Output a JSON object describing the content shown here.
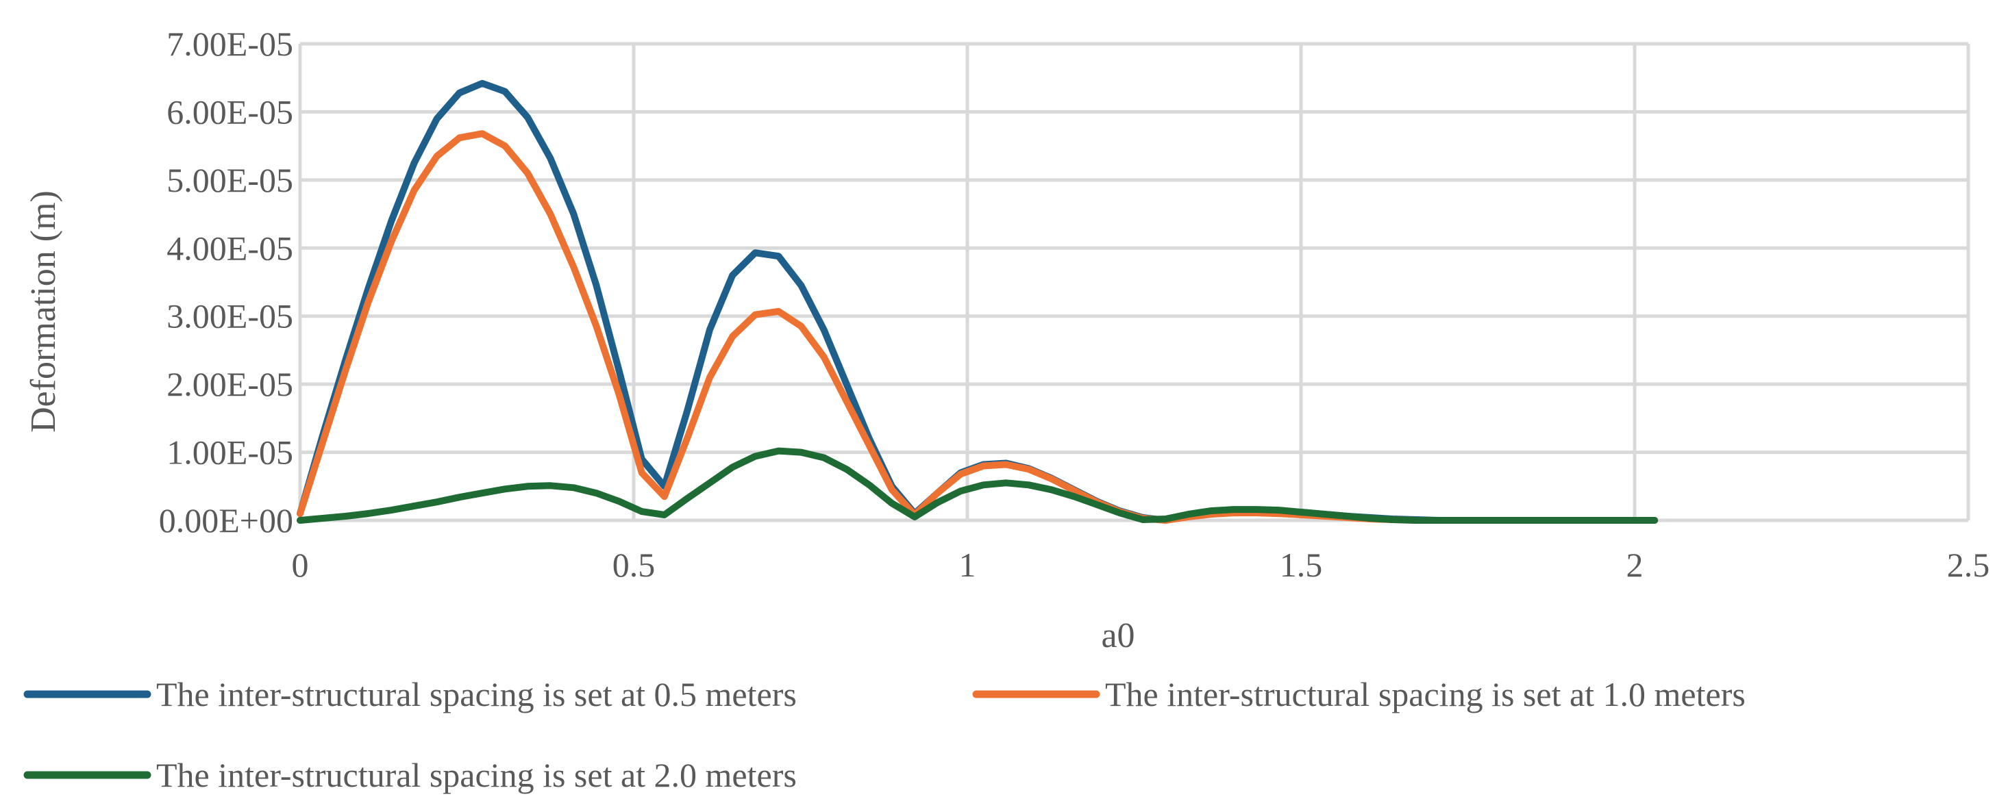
{
  "chart_data": {
    "type": "line",
    "title": "",
    "xlabel": "a0",
    "ylabel": "Deformation (m)",
    "xlim": [
      0,
      2.5
    ],
    "ylim": [
      0,
      7e-05
    ],
    "xticks": [
      "0",
      "0.5",
      "1",
      "1.5",
      "2",
      "2.5"
    ],
    "yticks": [
      "0.00E+00",
      "1.00E-05",
      "2.00E-05",
      "3.00E-05",
      "4.00E-05",
      "5.00E-05",
      "6.00E-05",
      "7.00E-05"
    ],
    "grid": true,
    "legend": "bottom",
    "series": [
      {
        "name": "The inter-structural spacing is set at 0.5 meters",
        "color": "#1f5f8b",
        "x": [
          0,
          0.034,
          0.068,
          0.102,
          0.137,
          0.171,
          0.205,
          0.239,
          0.273,
          0.307,
          0.341,
          0.375,
          0.41,
          0.444,
          0.478,
          0.512,
          0.546,
          0.58,
          0.614,
          0.648,
          0.682,
          0.717,
          0.751,
          0.785,
          0.819,
          0.853,
          0.887,
          0.921,
          0.955,
          0.99,
          1.024,
          1.058,
          1.092,
          1.126,
          1.16,
          1.194,
          1.228,
          1.263,
          1.297,
          1.331,
          1.365,
          1.399,
          1.433,
          1.467,
          1.501,
          1.536,
          1.57,
          1.604,
          1.638,
          1.672,
          1.706,
          1.74,
          1.775,
          1.809,
          1.843,
          1.877,
          1.911,
          1.945,
          1.979,
          2.013,
          2.03
        ],
        "values": [
          1e-06,
          1.25e-05,
          2.35e-05,
          3.4e-05,
          4.4e-05,
          5.25e-05,
          5.9e-05,
          6.28e-05,
          6.42e-05,
          6.3e-05,
          5.92e-05,
          5.32e-05,
          4.5e-05,
          3.45e-05,
          2.2e-05,
          9e-06,
          5e-06,
          1.6e-05,
          2.8e-05,
          3.6e-05,
          3.93e-05,
          3.88e-05,
          3.45e-05,
          2.8e-05,
          2e-05,
          1.2e-05,
          5e-06,
          1e-06,
          4e-06,
          7e-06,
          8.2e-06,
          8.4e-06,
          7.6e-06,
          6.2e-06,
          4.5e-06,
          2.8e-06,
          1.4e-06,
          4e-07,
          0,
          6e-07,
          1.1e-06,
          1.4e-06,
          1.5e-06,
          1.4e-06,
          1.2e-06,
          9e-07,
          6e-07,
          4e-07,
          2e-07,
          1e-07,
          0,
          0,
          0,
          0,
          0,
          0,
          0,
          0,
          0,
          0,
          0
        ]
      },
      {
        "name": "The inter-structural spacing is set at 1.0 meters",
        "color": "#ed7232",
        "x": [
          0,
          0.034,
          0.068,
          0.102,
          0.137,
          0.171,
          0.205,
          0.239,
          0.273,
          0.307,
          0.341,
          0.375,
          0.41,
          0.444,
          0.478,
          0.512,
          0.546,
          0.58,
          0.614,
          0.648,
          0.682,
          0.717,
          0.751,
          0.785,
          0.819,
          0.853,
          0.887,
          0.921,
          0.955,
          0.99,
          1.024,
          1.058,
          1.092,
          1.126,
          1.16,
          1.194,
          1.228,
          1.263,
          1.297,
          1.331,
          1.365,
          1.399,
          1.433,
          1.467,
          1.501,
          1.536,
          1.57,
          1.604,
          1.638,
          1.672,
          1.706,
          1.74,
          1.775,
          1.809,
          1.843,
          1.877,
          1.911,
          1.945,
          1.979,
          2.013,
          2.03
        ],
        "values": [
          1e-06,
          1.15e-05,
          2.2e-05,
          3.2e-05,
          4.1e-05,
          4.85e-05,
          5.35e-05,
          5.62e-05,
          5.68e-05,
          5.5e-05,
          5.1e-05,
          4.5e-05,
          3.72e-05,
          2.85e-05,
          1.85e-05,
          7e-06,
          3.5e-06,
          1.2e-05,
          2.1e-05,
          2.7e-05,
          3.02e-05,
          3.07e-05,
          2.85e-05,
          2.4e-05,
          1.75e-05,
          1.1e-05,
          4.5e-06,
          8e-07,
          4e-06,
          6.8e-06,
          8e-06,
          8.2e-06,
          7.5e-06,
          6.1e-06,
          4.4e-06,
          2.7e-06,
          1.3e-06,
          3e-07,
          0,
          5e-07,
          9e-07,
          1.1e-06,
          1.1e-06,
          1e-06,
          8e-07,
          6e-07,
          4e-07,
          2e-07,
          1e-07,
          0,
          0,
          0,
          0,
          0,
          0,
          0,
          0,
          0,
          0,
          0,
          0
        ]
      },
      {
        "name": "The inter-structural spacing is set at 2.0 meters",
        "color": "#1e6b34",
        "x": [
          0,
          0.034,
          0.068,
          0.102,
          0.137,
          0.171,
          0.205,
          0.239,
          0.273,
          0.307,
          0.341,
          0.375,
          0.41,
          0.444,
          0.478,
          0.512,
          0.546,
          0.58,
          0.614,
          0.648,
          0.682,
          0.717,
          0.751,
          0.785,
          0.819,
          0.853,
          0.887,
          0.921,
          0.955,
          0.99,
          1.024,
          1.058,
          1.092,
          1.126,
          1.16,
          1.194,
          1.228,
          1.263,
          1.297,
          1.331,
          1.365,
          1.399,
          1.433,
          1.467,
          1.501,
          1.536,
          1.57,
          1.604,
          1.638,
          1.672,
          1.706,
          1.74,
          1.775,
          1.809,
          1.843,
          1.877,
          1.911,
          1.945,
          1.979,
          2.013,
          2.03
        ],
        "values": [
          0,
          3e-07,
          6e-07,
          1e-06,
          1.5e-06,
          2.1e-06,
          2.7e-06,
          3.4e-06,
          4e-06,
          4.6e-06,
          5e-06,
          5.1e-06,
          4.8e-06,
          4e-06,
          2.8e-06,
          1.3e-06,
          8e-07,
          3.2e-06,
          5.5e-06,
          7.8e-06,
          9.4e-06,
          1.02e-05,
          1e-05,
          9.2e-06,
          7.5e-06,
          5.2e-06,
          2.5e-06,
          5e-07,
          2.6e-06,
          4.3e-06,
          5.2e-06,
          5.5e-06,
          5.2e-06,
          4.5e-06,
          3.5e-06,
          2.3e-06,
          1.1e-06,
          1e-07,
          2e-07,
          9e-07,
          1.4e-06,
          1.6e-06,
          1.6e-06,
          1.5e-06,
          1.2e-06,
          9e-07,
          6e-07,
          3e-07,
          1e-07,
          0,
          0,
          0,
          0,
          0,
          0,
          0,
          0,
          0,
          0,
          0,
          0
        ]
      }
    ]
  }
}
